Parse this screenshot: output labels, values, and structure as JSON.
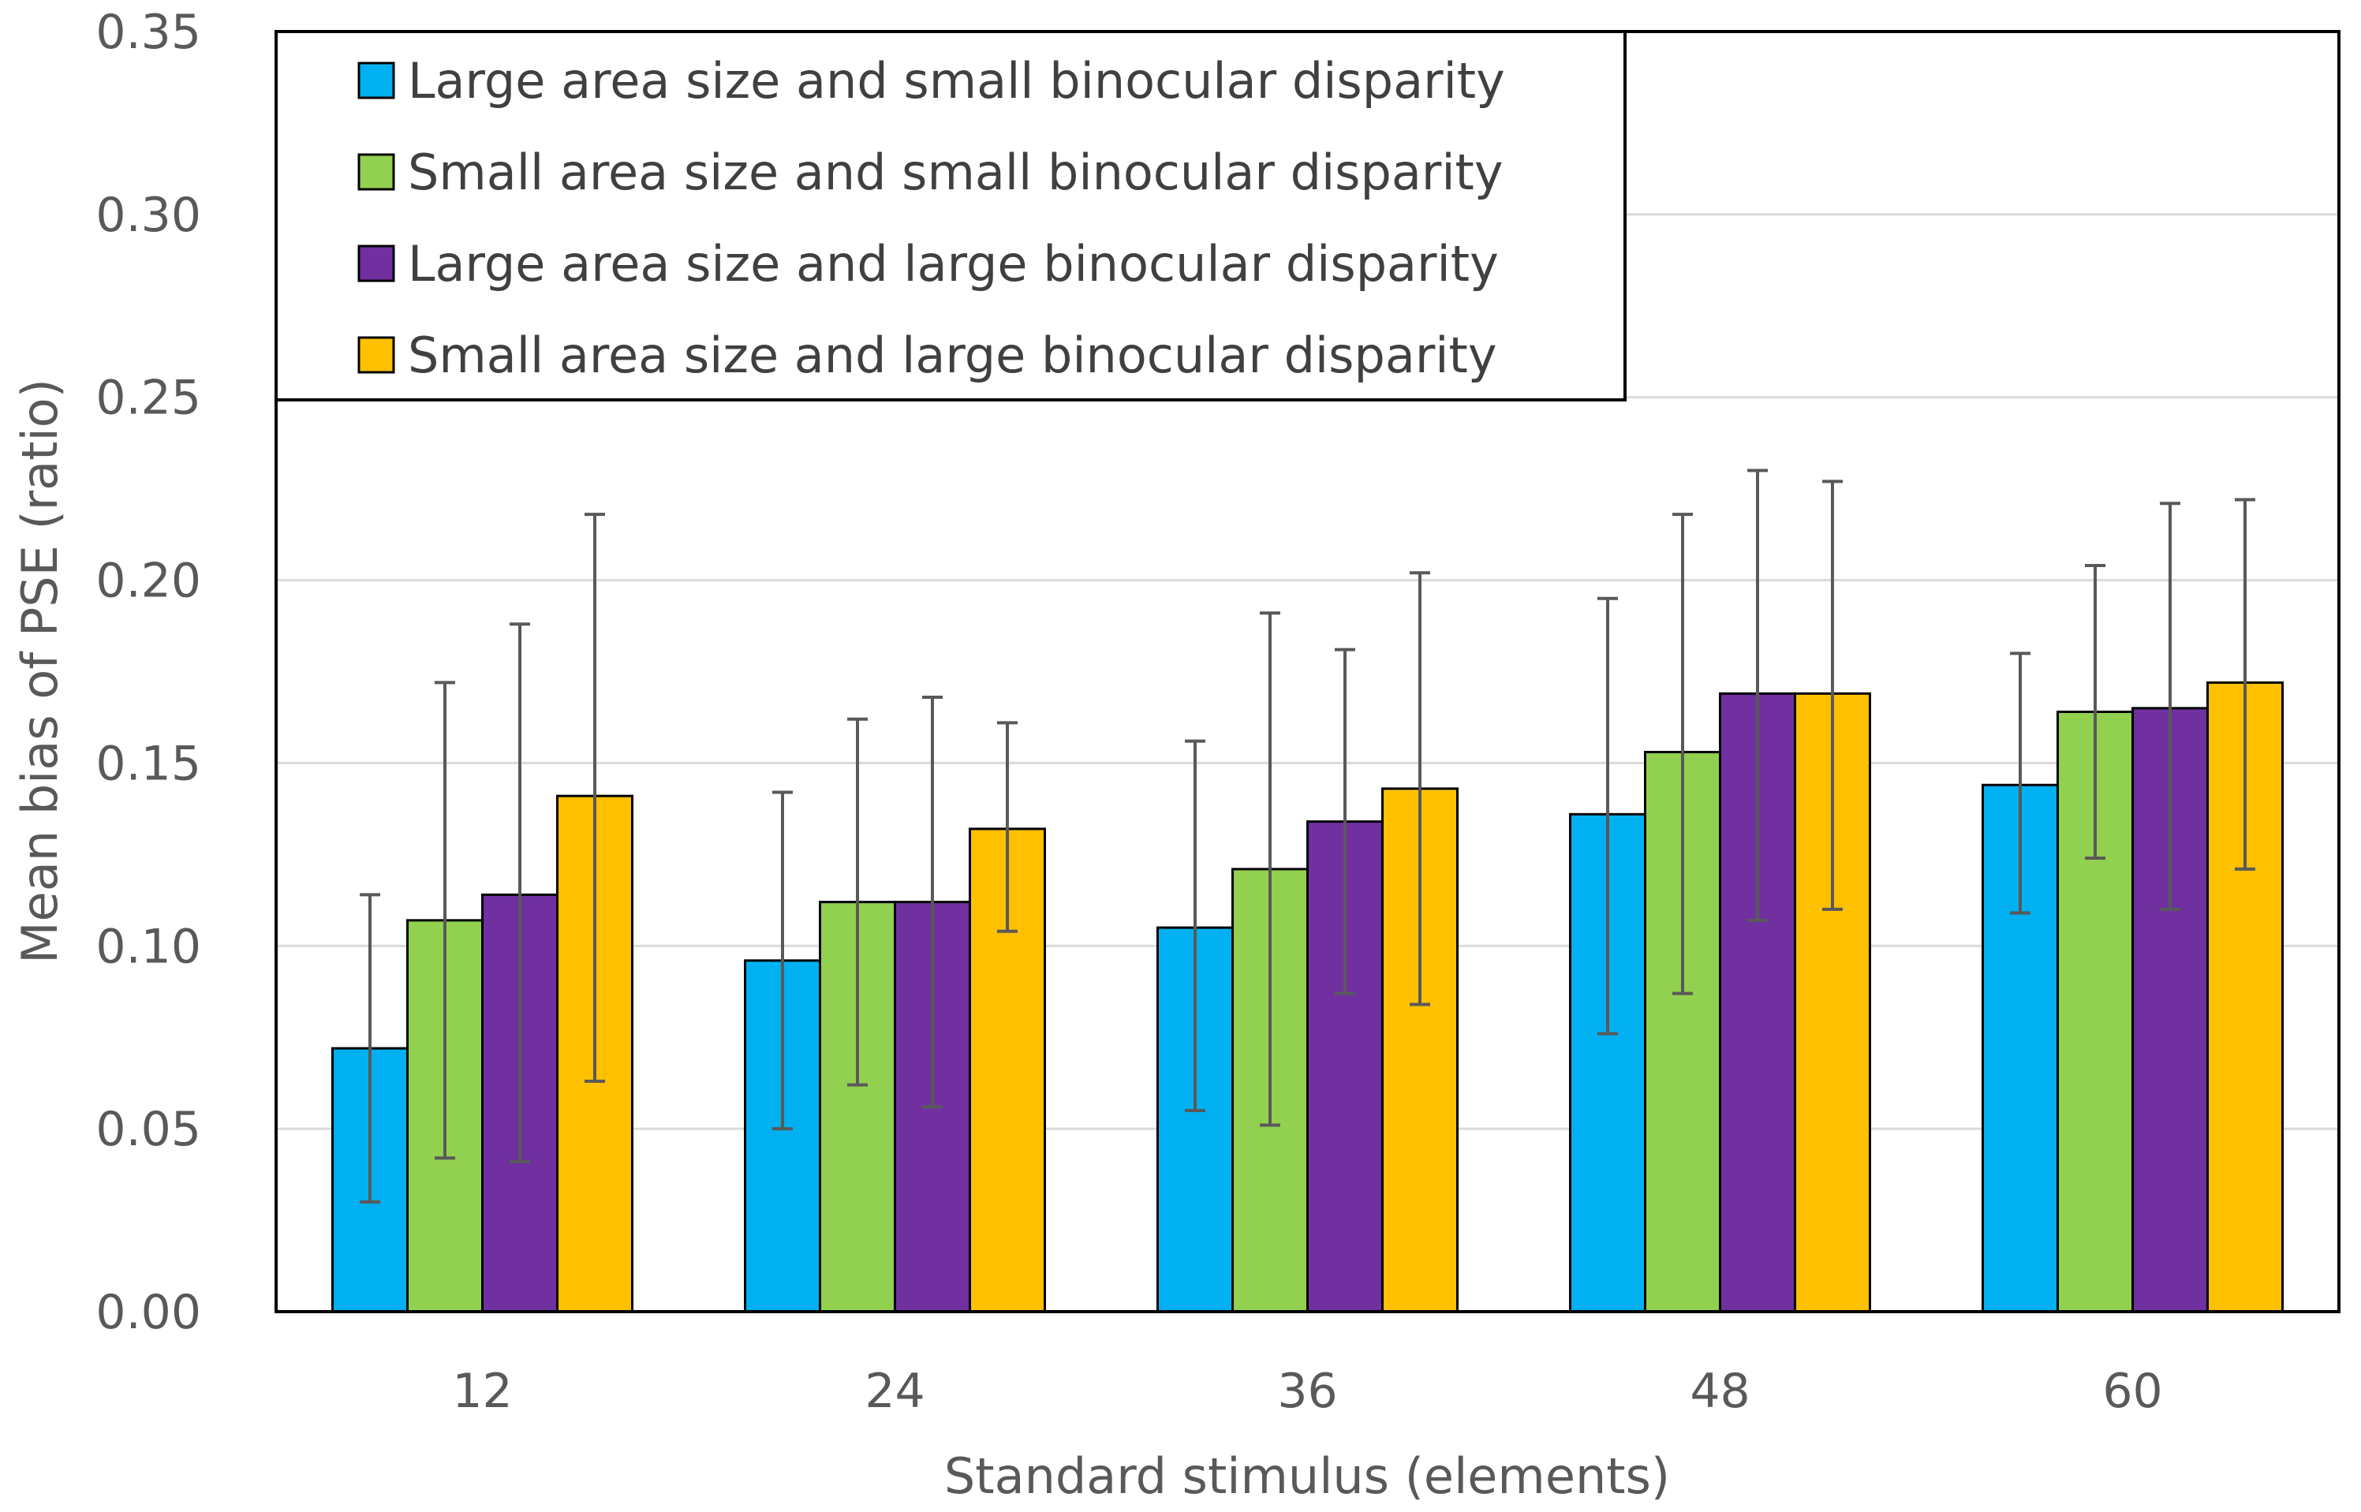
{
  "chart_data": {
    "type": "bar",
    "title": "",
    "xlabel": "Standard stimulus (elements)",
    "ylabel": "Mean bias of PSE (ratio)",
    "categories": [
      "12",
      "24",
      "36",
      "48",
      "60"
    ],
    "ylim": [
      0,
      0.35
    ],
    "yticks": [
      0.0,
      0.05,
      0.1,
      0.15,
      0.2,
      0.25,
      0.3,
      0.35
    ],
    "ytick_labels": [
      "0.00",
      "0.05",
      "0.10",
      "0.15",
      "0.20",
      "0.25",
      "0.30",
      "0.35"
    ],
    "grid": true,
    "error_bars": true,
    "legend_position": "top-left",
    "series": [
      {
        "name": "Large area size and small binocular disparity",
        "color": "#00B0F0",
        "values": [
          0.072,
          0.096,
          0.105,
          0.136,
          0.144
        ],
        "error_low": [
          0.03,
          0.05,
          0.055,
          0.076,
          0.109
        ],
        "error_high": [
          0.114,
          0.142,
          0.156,
          0.195,
          0.18
        ]
      },
      {
        "name": "Small area size and small binocular disparity",
        "color": "#92D050",
        "values": [
          0.107,
          0.112,
          0.121,
          0.153,
          0.164
        ],
        "error_low": [
          0.042,
          0.062,
          0.051,
          0.087,
          0.124
        ],
        "error_high": [
          0.172,
          0.162,
          0.191,
          0.218,
          0.204
        ]
      },
      {
        "name": "Large area size and large binocular disparity",
        "color": "#7030A0",
        "values": [
          0.114,
          0.112,
          0.134,
          0.169,
          0.165
        ],
        "error_low": [
          0.041,
          0.056,
          0.087,
          0.107,
          0.11
        ],
        "error_high": [
          0.188,
          0.168,
          0.181,
          0.23,
          0.221
        ]
      },
      {
        "name": "Small area size and large binocular disparity",
        "color": "#FFC000",
        "values": [
          0.141,
          0.132,
          0.143,
          0.169,
          0.172
        ],
        "error_low": [
          0.063,
          0.104,
          0.084,
          0.11,
          0.121
        ],
        "error_high": [
          0.218,
          0.161,
          0.202,
          0.227,
          0.222
        ]
      }
    ]
  }
}
